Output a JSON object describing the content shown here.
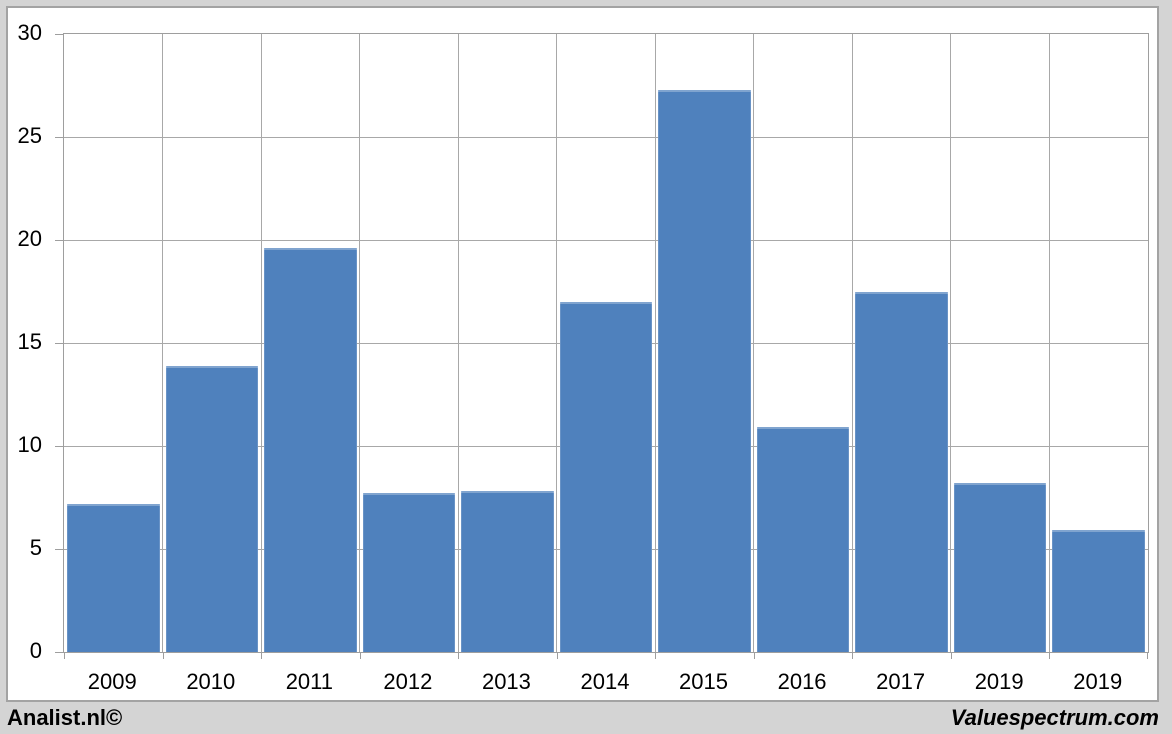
{
  "chart_data": {
    "type": "bar",
    "title": "",
    "xlabel": "",
    "ylabel": "",
    "categories": [
      "2009",
      "2010",
      "2011",
      "2012",
      "2013",
      "2014",
      "2015",
      "2016",
      "2017",
      "2019",
      "2019"
    ],
    "values": [
      7.2,
      13.9,
      19.6,
      7.7,
      7.8,
      17.0,
      27.3,
      10.9,
      17.5,
      8.2,
      5.9
    ],
    "ylim": [
      0,
      30
    ],
    "yticks": [
      0,
      5,
      10,
      15,
      20,
      25,
      30
    ],
    "grid": true,
    "legend": false,
    "bar_color": "#4f81bd",
    "gridline_color": "#a8a8a8",
    "axis_line_color": "#9e9e9e",
    "plot_background": "#ffffff",
    "page_background": "#d4d4d4"
  },
  "footer": {
    "left_text": "Analist.nl©",
    "right_text": "Valuespectrum.com"
  }
}
